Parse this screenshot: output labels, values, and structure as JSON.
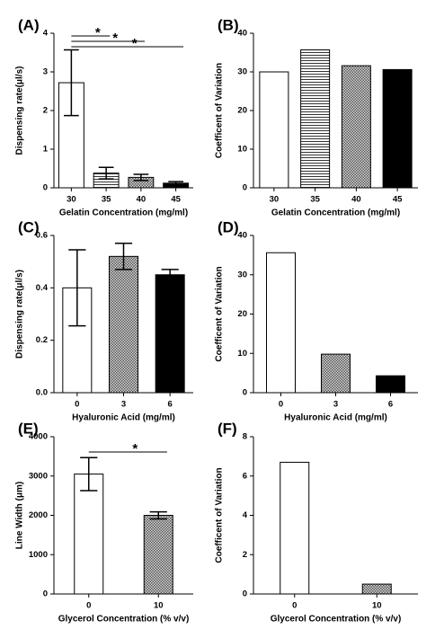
{
  "chart_data": [
    {
      "type": "bar",
      "label": "(A)",
      "xlabel": "Gelatin Concentration (mg/ml)",
      "ylabel": "Dispensing rate(μl/s)",
      "categories": [
        "30",
        "35",
        "40",
        "45"
      ],
      "values": [
        2.72,
        0.38,
        0.27,
        0.12
      ],
      "errors": [
        0.85,
        0.15,
        0.08,
        0.04
      ],
      "patterns": [
        "none",
        "hlines",
        "checker",
        "solid"
      ],
      "ylim": [
        0,
        4
      ],
      "yticks": [
        0,
        1,
        2,
        3,
        4
      ],
      "annotations": [
        {
          "text": "*"
        },
        {
          "text": "*"
        },
        {
          "text": "*"
        }
      ]
    },
    {
      "type": "bar",
      "label": "(B)",
      "xlabel": "Gelatin Concentration (mg/ml)",
      "ylabel": "Coefficent of Variation",
      "categories": [
        "30",
        "35",
        "40",
        "45"
      ],
      "values": [
        30,
        35.7,
        31.6,
        30.6
      ],
      "patterns": [
        "none",
        "hlines",
        "checker",
        "solid"
      ],
      "ylim": [
        0,
        40
      ],
      "yticks": [
        0,
        10,
        20,
        30,
        40
      ]
    },
    {
      "type": "bar",
      "label": "(C)",
      "xlabel": "Hyaluronic Acid (mg/ml)",
      "ylabel": "Dispensing rate(μl/s)",
      "categories": [
        "0",
        "3",
        "6"
      ],
      "values": [
        0.4,
        0.52,
        0.45
      ],
      "errors": [
        0.145,
        0.05,
        0.02
      ],
      "patterns": [
        "none",
        "checker",
        "solid"
      ],
      "ylim": [
        0,
        0.6
      ],
      "yticks": [
        {
          "value": 0,
          "label": "0.0"
        },
        0.2,
        0.4,
        0.6
      ]
    },
    {
      "type": "bar",
      "label": "(D)",
      "xlabel": "Hyaluronic Acid (mg/ml)",
      "ylabel": "Coefficent of Variation",
      "categories": [
        "0",
        "3",
        "6"
      ],
      "values": [
        35.6,
        9.8,
        4.3
      ],
      "patterns": [
        "none",
        "checker",
        "solid"
      ],
      "ylim": [
        0,
        40
      ],
      "yticks": [
        0,
        10,
        20,
        30,
        40
      ]
    },
    {
      "type": "bar",
      "label": "(E)",
      "xlabel": "Glycerol Concentration (% v/v)",
      "ylabel": "Line Width (μm)",
      "categories": [
        "0",
        "10"
      ],
      "values": [
        3050,
        2000
      ],
      "errors": [
        420,
        90
      ],
      "patterns": [
        "none",
        "checker"
      ],
      "ylim": [
        0,
        4000
      ],
      "yticks": [
        0,
        1000,
        2000,
        3000,
        4000
      ],
      "annotations": [
        {
          "text": "*"
        }
      ]
    },
    {
      "type": "bar",
      "label": "(F)",
      "xlabel": "Glycerol Concentration (% v/v)",
      "ylabel": "Coefficent of Variation",
      "categories": [
        "0",
        "10"
      ],
      "values": [
        6.7,
        0.5
      ],
      "patterns": [
        "none",
        "checker"
      ],
      "ylim": [
        0,
        8
      ],
      "yticks": [
        0,
        2,
        4,
        6,
        8
      ]
    }
  ]
}
